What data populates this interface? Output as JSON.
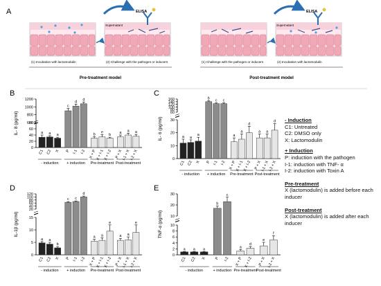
{
  "panel_A": {
    "letter": "A",
    "pre": {
      "well1_label": "(1) Incubation with lactomodulin",
      "well2_label": "(2) Challenge with the pathogen or inducers",
      "supernatant": "Supernatant",
      "elisa": "ELISA",
      "model_label": "Pre-treatment model"
    },
    "post": {
      "well1_label": "(1) Challenge with the pathogen or inducers",
      "well2_label": "(2) Incubation with lactomodulin",
      "supernatant": "Supernatant",
      "elisa": "ELISA",
      "model_label": "Post-treatment model"
    }
  },
  "group_labels": [
    "- induction",
    "+ induction",
    "Pre-treatment",
    "Post-treatment"
  ],
  "colors": {
    "untreated": "#222222",
    "induction": "#8c8c8c",
    "treated": "#e6e6e6",
    "outline": "#333333"
  },
  "chart_data": [
    {
      "type": "bar",
      "panel": "B",
      "ylabel": "IL- 8 (pg/ml)",
      "categories": [
        "C1",
        "C2",
        "X",
        "P",
        "I-1",
        "I-2",
        "X + P",
        "X + I-1",
        "X + I-2",
        "P + X",
        "I-1 + X",
        "I-2 + X"
      ],
      "values": [
        33,
        34,
        30,
        900,
        1020,
        1080,
        30,
        34,
        30,
        34,
        40,
        36
      ],
      "errors": [
        7,
        4,
        3,
        60,
        50,
        45,
        5,
        7,
        3,
        6,
        6,
        6
      ],
      "letters": [
        "a",
        "a",
        "a",
        "c",
        "d",
        "d",
        "b",
        "e",
        "b",
        "a",
        "a",
        "a"
      ],
      "lower_ticks": [
        0,
        20,
        40,
        60,
        80
      ],
      "upper_ticks": [
        600,
        800,
        1000,
        1200
      ]
    },
    {
      "type": "bar",
      "panel": "C",
      "ylabel": "IL- 6 (pg/ml)",
      "categories": [
        "C1",
        "C2",
        "X",
        "P",
        "I-1",
        "I-2",
        "X + P",
        "X + I-1",
        "X + I-2",
        "P + X",
        "I-1 + X",
        "I-2 + X"
      ],
      "values": [
        12,
        12.5,
        13.5,
        140,
        125,
        125,
        13,
        15,
        20,
        16,
        16,
        22
      ],
      "errors": [
        3,
        2,
        3,
        8,
        6,
        6,
        3,
        4,
        5,
        3,
        3,
        5
      ],
      "letters": [
        "a",
        "a",
        "a",
        "b",
        "c",
        "c",
        "a",
        "a",
        "d",
        "a",
        "a",
        "d"
      ],
      "lower_ticks": [
        0,
        10,
        20,
        30
      ],
      "upper_ticks": [
        60,
        80,
        100,
        120,
        140,
        160
      ]
    },
    {
      "type": "bar",
      "panel": "D",
      "ylabel": "IL-1β (pg/ml)",
      "categories": [
        "C1",
        "C2",
        "X",
        "P",
        "I-1",
        "I-2",
        "X + P",
        "X + I-1",
        "X + I-2",
        "P + X",
        "I-1 + X",
        "I-2 + X"
      ],
      "values": [
        4.8,
        4.3,
        2.8,
        65,
        70,
        100,
        5.5,
        5.8,
        9.5,
        5.8,
        6,
        9
      ],
      "errors": [
        0.5,
        0.7,
        0.5,
        4,
        4,
        6,
        0.7,
        1,
        2.5,
        0.8,
        1.2,
        3
      ],
      "letters": [
        "a",
        "a",
        "b",
        "c",
        "c",
        "d",
        "a",
        "a",
        "e",
        "a",
        "a",
        "e"
      ],
      "lower_ticks": [
        0,
        5,
        10,
        15
      ],
      "upper_ticks": [
        20,
        40,
        60,
        80,
        100,
        120
      ]
    },
    {
      "type": "bar",
      "panel": "E",
      "ylabel": "TNF-α (pg/ml)",
      "categories": [
        "C1",
        "C2",
        "X",
        "P",
        "I-2",
        "X + P",
        "X + I-2",
        "P + X",
        "I-2 + X"
      ],
      "values": [
        1,
        1,
        1,
        17,
        23,
        1.3,
        2.2,
        3,
        5
      ],
      "errors": [
        0.1,
        0.1,
        0.1,
        2,
        4,
        0.5,
        0.6,
        1.2,
        1.4
      ],
      "letters": [
        "a",
        "a",
        "a",
        "b",
        "c",
        "a",
        "d",
        "e",
        "f"
      ],
      "lower_ticks": [
        0,
        2,
        4,
        6,
        8,
        10
      ],
      "upper_ticks": [
        10,
        20,
        30
      ]
    }
  ],
  "legend": {
    "induction_neg_head": "- Induction",
    "induction_neg_items": [
      "C1: Untreated",
      "C2: DMSO only",
      "X: Lactomodulin"
    ],
    "induction_pos_head": "+ Induction",
    "induction_pos_items": [
      "P: induction with the pathogen",
      "I-1: induction with TNF- α",
      "I-2: induction with Toxin A"
    ],
    "pre_head": "Pre-treatment",
    "pre_text": "X (lactomodulin) is added before each inducer",
    "post_head": "Post-treatment",
    "post_text": "X (lactomodulin) is added after each inducer"
  }
}
